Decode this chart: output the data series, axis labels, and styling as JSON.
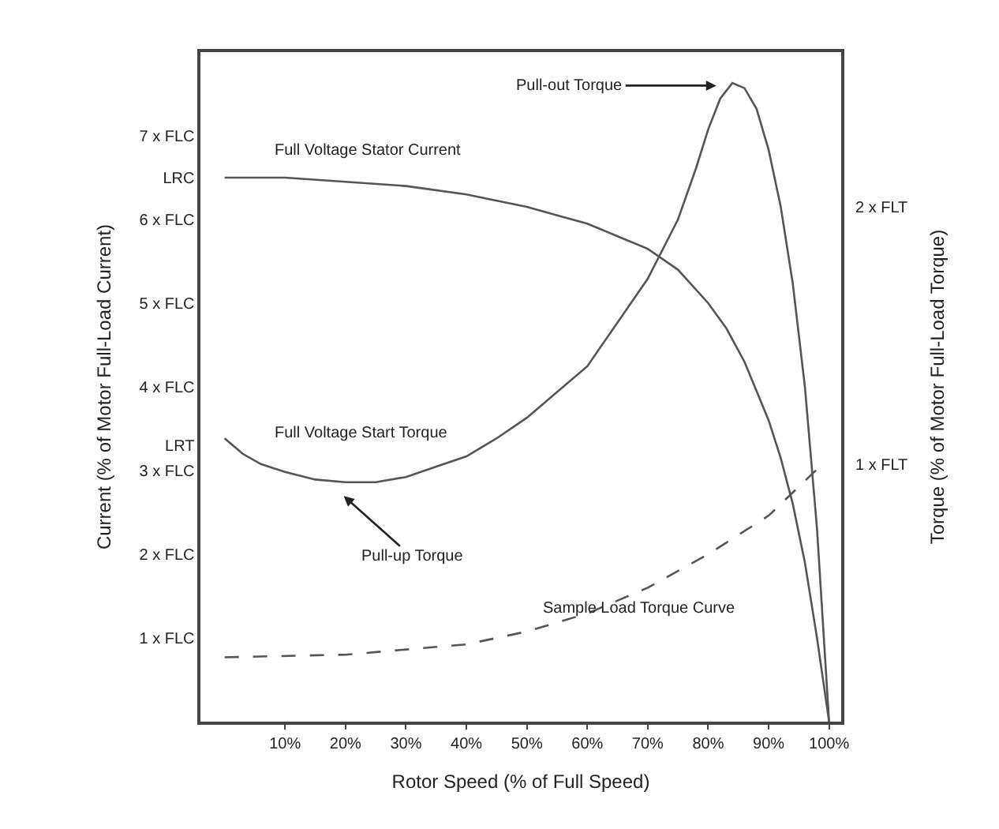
{
  "chart_data": {
    "type": "line",
    "xlabel": "Rotor Speed (% of Full Speed)",
    "ylabel": "Current (% of Motor Full-Load Current)",
    "y2label": "Torque (% of Motor Full-Load Torque)",
    "xlim": [
      -4,
      102
    ],
    "xticks": [
      {
        "value": 10,
        "label": "10%"
      },
      {
        "value": 20,
        "label": "20%"
      },
      {
        "value": 30,
        "label": "30%"
      },
      {
        "value": 40,
        "label": "40%"
      },
      {
        "value": 50,
        "label": "50%"
      },
      {
        "value": 60,
        "label": "60%"
      },
      {
        "value": 70,
        "label": "70%"
      },
      {
        "value": 80,
        "label": "80%"
      },
      {
        "value": 90,
        "label": "90%"
      },
      {
        "value": 100,
        "label": "100%"
      }
    ],
    "ylim": [
      0,
      8
    ],
    "yticks": [
      {
        "value": 1,
        "label": "1 x FLC"
      },
      {
        "value": 2,
        "label": "2 x FLC"
      },
      {
        "value": 3,
        "label": "3 x FLC"
      },
      {
        "value": 3.3,
        "label": "LRT"
      },
      {
        "value": 4,
        "label": "4 x FLC"
      },
      {
        "value": 5,
        "label": "5 x FLC"
      },
      {
        "value": 6,
        "label": "6 x FLC"
      },
      {
        "value": 6.5,
        "label": "LRC"
      },
      {
        "value": 7,
        "label": "7 x FLC"
      }
    ],
    "y2lim": [
      0,
      2.6
    ],
    "y2ticks": [
      {
        "value": 1,
        "label": "1 x FLT"
      },
      {
        "value": 2,
        "label": "2 x FLT"
      }
    ],
    "marker": "none",
    "series": [
      {
        "color": "#555555",
        "line_style": "solid",
        "x": [
          0,
          10,
          20,
          30,
          40,
          50,
          55,
          60,
          65,
          70,
          75,
          80,
          83,
          86,
          88,
          90,
          92,
          94,
          96,
          98,
          100
        ],
        "values": [
          6.5,
          6.5,
          6.45,
          6.4,
          6.3,
          6.15,
          6.05,
          5.95,
          5.8,
          5.65,
          5.4,
          5.0,
          4.7,
          4.3,
          3.95,
          3.6,
          3.15,
          2.6,
          1.9,
          1.0,
          0
        ]
      },
      {
        "color": "#555555",
        "line_style": "solid",
        "axis": "y2",
        "x": [
          0,
          3,
          6,
          10,
          15,
          20,
          25,
          30,
          35,
          40,
          45,
          50,
          55,
          60,
          65,
          70,
          75,
          78,
          80,
          82,
          84,
          86,
          88,
          90,
          92,
          94,
          96,
          98,
          100
        ],
        "values": [
          1.1,
          1.04,
          1.0,
          0.97,
          0.94,
          0.93,
          0.93,
          0.95,
          0.99,
          1.03,
          1.1,
          1.18,
          1.28,
          1.38,
          1.55,
          1.72,
          1.95,
          2.15,
          2.3,
          2.42,
          2.48,
          2.46,
          2.38,
          2.22,
          2.0,
          1.7,
          1.3,
          0.75,
          0
        ]
      },
      {
        "color": "#555555",
        "line_style": "dashed",
        "axis": "y2",
        "x": [
          0,
          20,
          40,
          50,
          60,
          70,
          80,
          90,
          98
        ],
        "values": [
          0.25,
          0.26,
          0.3,
          0.35,
          0.42,
          0.52,
          0.65,
          0.8,
          0.98
        ]
      }
    ],
    "annotations": [
      "Full Voltage Stator Current",
      "Full Voltage Start Torque",
      "Sample Load Torque Curve",
      "Pull-out Torque",
      "Pull-up Torque"
    ]
  }
}
